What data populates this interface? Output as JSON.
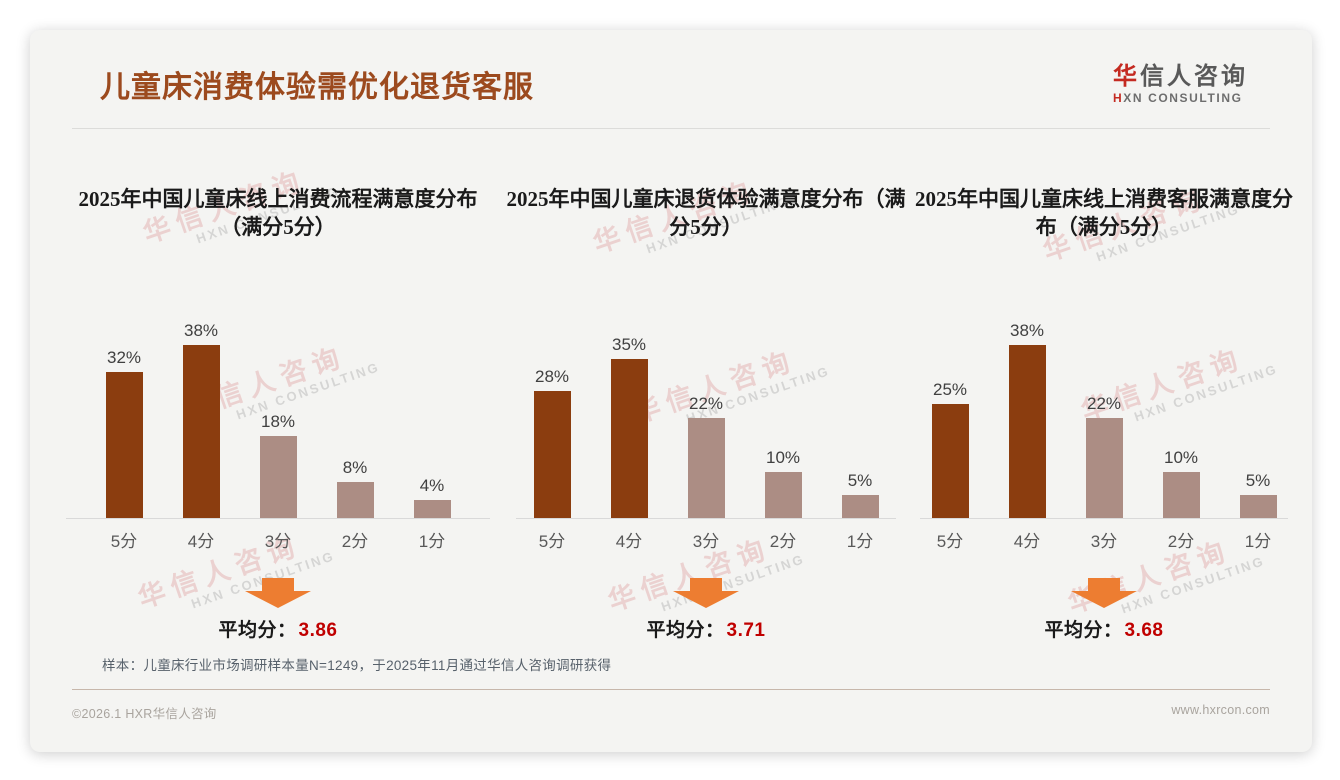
{
  "header": {
    "title": "儿童床消费体验需优化退货客服",
    "logo_cn": "华信人咨询",
    "logo_en": "HXN CONSULTING"
  },
  "watermark": {
    "cn": "华信人咨询",
    "en": "HXN CONSULTING"
  },
  "colors": {
    "title_brown": "#9c4a1e",
    "dark_bar": "#8b3d0f",
    "light_bar": "#ac8d84",
    "arrow_orange": "#ed7d31",
    "avg_red": "#c00000"
  },
  "chart_data": [
    {
      "type": "bar",
      "title": "2025年中国儿童床线上消费流程满意度分布（满分5分）",
      "categories": [
        "5分",
        "4分",
        "3分",
        "2分",
        "1分"
      ],
      "values": [
        32,
        38,
        18,
        8,
        4
      ],
      "data_labels": [
        "32%",
        "38%",
        "18%",
        "8%",
        "4%"
      ],
      "bar_colors": [
        "#8b3d0f",
        "#8b3d0f",
        "#ac8d84",
        "#ac8d84",
        "#ac8d84"
      ],
      "ylim": [
        0,
        40
      ],
      "grid": false,
      "avg_prefix": "平均分：",
      "average": 3.86,
      "avg_display": "3.86"
    },
    {
      "type": "bar",
      "title": "2025年中国儿童床退货体验满意度分布（满分5分）",
      "categories": [
        "5分",
        "4分",
        "3分",
        "2分",
        "1分"
      ],
      "values": [
        28,
        35,
        22,
        10,
        5
      ],
      "data_labels": [
        "28%",
        "35%",
        "22%",
        "10%",
        "5%"
      ],
      "bar_colors": [
        "#8b3d0f",
        "#8b3d0f",
        "#ac8d84",
        "#ac8d84",
        "#ac8d84"
      ],
      "ylim": [
        0,
        40
      ],
      "grid": false,
      "avg_prefix": "平均分：",
      "average": 3.71,
      "avg_display": "3.71"
    },
    {
      "type": "bar",
      "title": "2025年中国儿童床线上消费客服满意度分布（满分5分）",
      "categories": [
        "5分",
        "4分",
        "3分",
        "2分",
        "1分"
      ],
      "values": [
        25,
        38,
        22,
        10,
        5
      ],
      "data_labels": [
        "25%",
        "38%",
        "22%",
        "10%",
        "5%"
      ],
      "bar_colors": [
        "#8b3d0f",
        "#8b3d0f",
        "#ac8d84",
        "#ac8d84",
        "#ac8d84"
      ],
      "ylim": [
        0,
        40
      ],
      "grid": false,
      "avg_prefix": "平均分：",
      "average": 3.68,
      "avg_display": "3.68"
    }
  ],
  "footnote": "样本：儿童床行业市场调研样本量N=1249，于2025年11月通过华信人咨询调研获得",
  "footer": {
    "left": "©2026.1 HXR华信人咨询",
    "right": "www.hxrcon.com"
  }
}
